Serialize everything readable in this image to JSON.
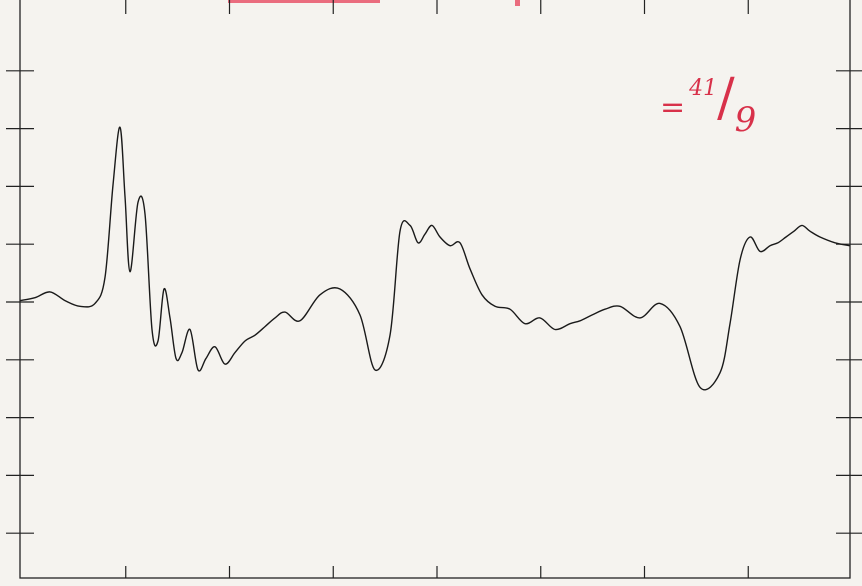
{
  "annotation": {
    "equals": "=",
    "numerator": "41",
    "slash": "/",
    "denominator": "9",
    "color": "#d8314a"
  },
  "chart_data": {
    "type": "line",
    "title": "",
    "xlabel": "",
    "ylabel": "",
    "grid": false,
    "legend": "none",
    "xlim": [
      0,
      8.3
    ],
    "ylim": [
      0,
      10
    ],
    "x_tick_count": 8,
    "y_tick_count": 10,
    "line_color": "#1a1a1a",
    "series": [
      {
        "x": [
          0,
          0.15,
          0.3,
          0.45,
          0.6,
          0.75,
          0.85,
          0.93,
          1.0,
          1.05,
          1.1,
          1.18,
          1.25,
          1.32,
          1.38,
          1.44,
          1.5,
          1.56,
          1.62,
          1.7,
          1.78,
          1.86,
          1.95,
          2.05,
          2.15,
          2.25,
          2.35,
          2.45,
          2.55,
          2.65,
          2.8,
          3.0,
          3.2,
          3.4,
          3.55,
          3.7,
          3.8,
          3.9,
          3.98,
          4.05,
          4.12,
          4.2,
          4.3,
          4.4,
          4.5,
          4.62,
          4.75,
          4.9,
          5.05,
          5.2,
          5.35,
          5.5,
          5.6,
          5.72,
          5.85,
          6.0,
          6.2,
          6.4,
          6.6,
          6.8,
          7.0,
          7.1,
          7.2,
          7.3,
          7.4,
          7.5,
          7.58,
          7.66,
          7.74,
          7.82,
          7.9,
          8.0,
          8.15,
          8.3
        ],
        "y": [
          4.8,
          4.85,
          4.95,
          4.8,
          4.7,
          4.75,
          5.2,
          6.8,
          7.8,
          6.6,
          5.3,
          6.5,
          6.3,
          4.3,
          4.1,
          5.0,
          4.5,
          3.8,
          3.9,
          4.3,
          3.6,
          3.8,
          4.0,
          3.7,
          3.9,
          4.1,
          4.2,
          4.35,
          4.5,
          4.6,
          4.45,
          4.9,
          5.0,
          4.55,
          3.6,
          4.2,
          6.0,
          6.1,
          5.8,
          5.95,
          6.1,
          5.9,
          5.75,
          5.8,
          5.35,
          4.9,
          4.7,
          4.65,
          4.4,
          4.5,
          4.3,
          4.4,
          4.45,
          4.55,
          4.65,
          4.7,
          4.5,
          4.75,
          4.35,
          3.3,
          3.55,
          4.4,
          5.5,
          5.9,
          5.65,
          5.75,
          5.8,
          5.9,
          6.0,
          6.1,
          6.0,
          5.9,
          5.8,
          5.75
        ]
      }
    ]
  }
}
